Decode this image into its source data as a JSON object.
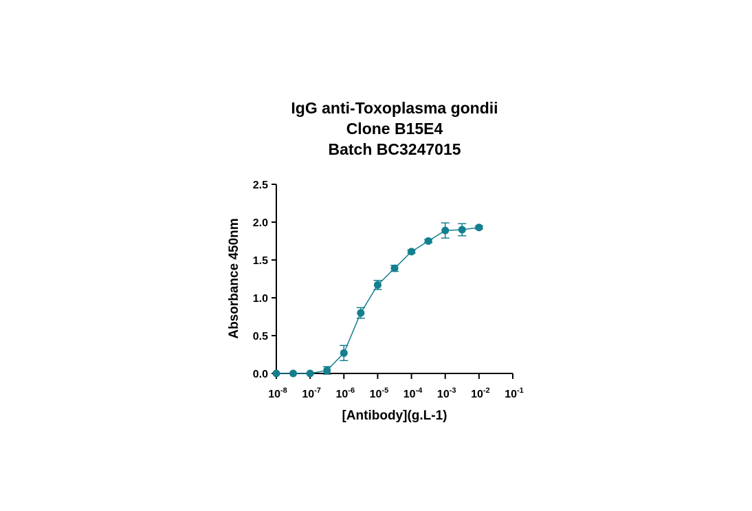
{
  "chart_data": {
    "type": "scatter",
    "title": [
      "IgG anti-Toxoplasma gondii",
      "Clone B15E4",
      "Batch BC3247015"
    ],
    "xlabel": "[Antibody](g.L-1)",
    "ylabel": "Absorbance 450nm",
    "x_scale": "log",
    "xlim": [
      1e-08,
      0.1
    ],
    "ylim": [
      0,
      2.5
    ],
    "x_ticks": [
      {
        "base": "10",
        "exp": "-8"
      },
      {
        "base": "10",
        "exp": "-7"
      },
      {
        "base": "10",
        "exp": "-6"
      },
      {
        "base": "10",
        "exp": "-5"
      },
      {
        "base": "10",
        "exp": "-4"
      },
      {
        "base": "10",
        "exp": "-3"
      },
      {
        "base": "10",
        "exp": "-2"
      },
      {
        "base": "10",
        "exp": "-1"
      }
    ],
    "y_ticks": [
      "0.0",
      "0.5",
      "1.0",
      "1.5",
      "2.0",
      "2.5"
    ],
    "grid": false,
    "color": "#137f8f",
    "series": [
      {
        "x": [
          1e-08,
          3.16e-08,
          1e-07,
          3.16e-07,
          1e-06,
          3.16e-06,
          1e-05,
          3.16e-05,
          0.0001,
          0.000316,
          0.001,
          0.00316,
          0.01
        ],
        "y": [
          0.0,
          0.0,
          0.0,
          0.04,
          0.27,
          0.8,
          1.17,
          1.39,
          1.61,
          1.75,
          1.89,
          1.9,
          1.93
        ],
        "error": [
          0.0,
          0.0,
          0.0,
          0.05,
          0.1,
          0.07,
          0.06,
          0.04,
          0.02,
          0.02,
          0.1,
          0.08,
          0.02
        ]
      }
    ]
  }
}
